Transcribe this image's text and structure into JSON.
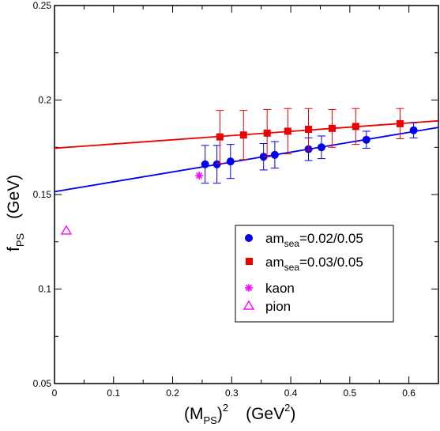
{
  "chart_data": {
    "type": "scatter",
    "xlim": [
      0,
      0.65
    ],
    "ylim": [
      0.05,
      0.25
    ],
    "x_ticks": [
      "0",
      "0.1",
      "0.2",
      "0.3",
      "0.4",
      "0.5",
      "0.6"
    ],
    "x_tick_values": [
      0,
      0.1,
      0.2,
      0.3,
      0.4,
      0.5,
      0.6
    ],
    "y_ticks": [
      "0.05",
      "0.1",
      "0.15",
      "0.2",
      "0.25"
    ],
    "y_tick_values": [
      0.05,
      0.1,
      0.15,
      0.2,
      0.25
    ],
    "xlabel": {
      "base": "(M",
      "sub": "PS",
      "rest": ")",
      "sup": "2",
      "unit": "(GeV",
      "unit_sup": "2",
      "unit_close": ")"
    },
    "ylabel": {
      "base": "f",
      "sub": "PS",
      "unit": "(GeV)"
    },
    "grid": false,
    "legend_placement": "lower-right",
    "series": [
      {
        "key": "sea002",
        "label": {
          "base": "am",
          "sub": "sea",
          "rest": "=0.02/0.05"
        },
        "marker": "circle",
        "color": "#0000ee",
        "x": [
          0.255,
          0.275,
          0.298,
          0.354,
          0.373,
          0.43,
          0.452,
          0.528,
          0.608
        ],
        "y": [
          0.166,
          0.166,
          0.1675,
          0.17,
          0.171,
          0.174,
          0.175,
          0.179,
          0.184
        ],
        "err": [
          0.01,
          0.01,
          0.009,
          0.007,
          0.007,
          0.006,
          0.006,
          0.0045,
          0.004
        ],
        "fit": {
          "x": [
            0,
            0.65
          ],
          "y": [
            0.1515,
            0.1855
          ]
        }
      },
      {
        "key": "sea003",
        "label": {
          "base": "am",
          "sub": "sea",
          "rest": "=0.03/0.05"
        },
        "marker": "square",
        "color": "#ee0000",
        "x": [
          0.28,
          0.32,
          0.36,
          0.395,
          0.43,
          0.47,
          0.51,
          0.585
        ],
        "y": [
          0.1805,
          0.1815,
          0.1825,
          0.1835,
          0.1845,
          0.185,
          0.186,
          0.1875
        ],
        "err": [
          0.014,
          0.013,
          0.0125,
          0.012,
          0.011,
          0.01,
          0.0095,
          0.008
        ],
        "fit": {
          "x": [
            0,
            0.65
          ],
          "y": [
            0.1745,
            0.189
          ]
        }
      },
      {
        "key": "kaon",
        "label": {
          "base": "kaon",
          "sub": "",
          "rest": ""
        },
        "marker": "asterisk",
        "color": "#ff00ff",
        "x": [
          0.245
        ],
        "y": [
          0.16
        ]
      },
      {
        "key": "pion",
        "label": {
          "base": "pion",
          "sub": "",
          "rest": ""
        },
        "marker": "triangle",
        "color": "#ff00ff",
        "x": [
          0.02
        ],
        "y": [
          0.131
        ]
      }
    ]
  }
}
